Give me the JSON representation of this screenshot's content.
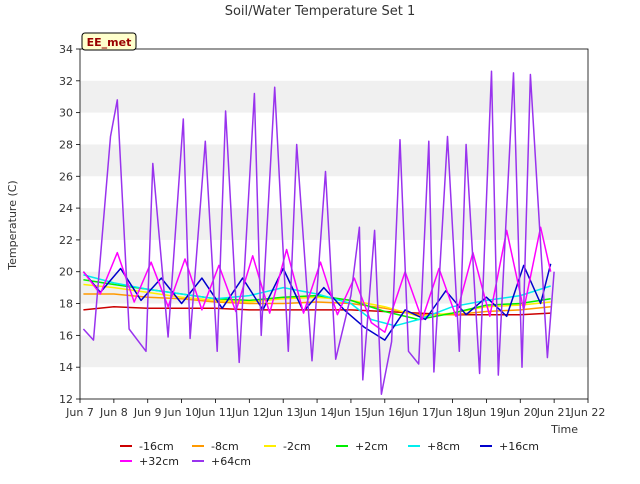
{
  "chart_data": {
    "type": "line",
    "title": "Soil/Water Temperature Set 1",
    "xlabel": "Time",
    "ylabel": "Temperature (C)",
    "annotation": "EE_met",
    "xlim": [
      7.0,
      22.0
    ],
    "ylim": [
      12,
      34
    ],
    "x_ticks": [
      {
        "v": 7,
        "label": "Jun 7"
      },
      {
        "v": 8,
        "label": "Jun 8"
      },
      {
        "v": 9,
        "label": "Jun 9"
      },
      {
        "v": 10,
        "label": "Jun 10"
      },
      {
        "v": 11,
        "label": "Jun 11"
      },
      {
        "v": 12,
        "label": "Jun 12"
      },
      {
        "v": 13,
        "label": "Jun 13"
      },
      {
        "v": 14,
        "label": "Jun 14"
      },
      {
        "v": 15,
        "label": "Jun 15"
      },
      {
        "v": 16,
        "label": "Jun 16"
      },
      {
        "v": 17,
        "label": "Jun 17"
      },
      {
        "v": 18,
        "label": "Jun 18"
      },
      {
        "v": 19,
        "label": "Jun 19"
      },
      {
        "v": 20,
        "label": "Jun 20"
      },
      {
        "v": 21,
        "label": "Jun 21"
      },
      {
        "v": 22,
        "label": "Jun 22"
      }
    ],
    "y_ticks": [
      12,
      14,
      16,
      18,
      20,
      22,
      24,
      26,
      28,
      30,
      32,
      34
    ],
    "grid": "horizontal bands",
    "legend_position": "bottom",
    "series": [
      {
        "name": "-16cm",
        "color": "#cc0000",
        "width": 1.5,
        "x": [
          7.1,
          8.0,
          9.0,
          10.0,
          11.0,
          12.0,
          13.0,
          14.0,
          15.0,
          16.0,
          17.0,
          18.0,
          19.0,
          20.0,
          20.9
        ],
        "y": [
          17.6,
          17.8,
          17.7,
          17.7,
          17.7,
          17.6,
          17.6,
          17.6,
          17.6,
          17.5,
          17.4,
          17.3,
          17.3,
          17.3,
          17.4
        ]
      },
      {
        "name": "-8cm",
        "color": "#ff9900",
        "width": 1.5,
        "x": [
          7.1,
          8.0,
          9.0,
          10.0,
          11.0,
          12.0,
          13.0,
          14.0,
          15.0,
          16.0,
          17.0,
          18.0,
          19.0,
          20.0,
          20.9
        ],
        "y": [
          18.6,
          18.6,
          18.4,
          18.3,
          18.1,
          18.0,
          18.0,
          18.1,
          18.0,
          17.7,
          17.3,
          17.3,
          17.5,
          17.6,
          17.8
        ]
      },
      {
        "name": "-2cm",
        "color": "#ffee00",
        "width": 1.5,
        "x": [
          7.1,
          8.0,
          9.0,
          10.0,
          11.0,
          12.0,
          13.0,
          14.0,
          15.0,
          16.0,
          17.0,
          18.0,
          19.0,
          20.0,
          20.9
        ],
        "y": [
          19.2,
          19.0,
          18.7,
          18.4,
          18.2,
          18.1,
          18.3,
          18.4,
          18.2,
          17.8,
          17.2,
          17.4,
          17.8,
          17.9,
          18.1
        ]
      },
      {
        "name": "+2cm",
        "color": "#00ee00",
        "width": 1.5,
        "x": [
          7.1,
          8.0,
          9.0,
          10.0,
          11.0,
          12.0,
          13.0,
          14.0,
          15.0,
          16.0,
          17.0,
          18.0,
          19.0,
          20.0,
          20.9
        ],
        "y": [
          19.5,
          19.2,
          18.9,
          18.6,
          18.3,
          18.2,
          18.4,
          18.5,
          18.2,
          17.5,
          17.0,
          17.4,
          17.9,
          18.0,
          18.3
        ]
      },
      {
        "name": "+8cm",
        "color": "#00eeee",
        "width": 1.5,
        "x": [
          7.1,
          8.0,
          9.0,
          10.0,
          11.0,
          12.0,
          13.0,
          14.0,
          15.0,
          15.6,
          16.3,
          17.0,
          18.0,
          19.0,
          20.0,
          20.9
        ],
        "y": [
          19.8,
          19.3,
          18.9,
          18.6,
          18.3,
          18.5,
          19.0,
          18.6,
          18.0,
          17.0,
          16.6,
          17.0,
          17.8,
          18.2,
          18.5,
          19.1
        ]
      },
      {
        "name": "+16cm",
        "color": "#0000cc",
        "width": 1.5,
        "x": [
          7.1,
          7.6,
          8.2,
          8.8,
          9.4,
          10.0,
          10.6,
          11.2,
          11.8,
          12.4,
          13.0,
          13.6,
          14.2,
          14.8,
          15.4,
          16.0,
          16.6,
          17.2,
          17.8,
          18.4,
          19.0,
          19.6,
          20.1,
          20.6,
          20.9
        ],
        "y": [
          20.0,
          18.7,
          20.2,
          18.2,
          19.6,
          18.0,
          19.6,
          17.7,
          19.6,
          17.6,
          20.2,
          17.5,
          19.0,
          17.6,
          16.5,
          15.7,
          17.6,
          17.0,
          18.8,
          17.3,
          18.4,
          17.2,
          20.4,
          18.0,
          20.5
        ]
      },
      {
        "name": "+32cm",
        "color": "#ff00ff",
        "width": 1.5,
        "x": [
          7.1,
          7.6,
          8.1,
          8.6,
          9.1,
          9.6,
          10.1,
          10.6,
          11.1,
          11.6,
          12.1,
          12.6,
          13.1,
          13.6,
          14.1,
          14.6,
          15.1,
          15.6,
          16.0,
          16.6,
          17.1,
          17.6,
          18.1,
          18.6,
          19.1,
          19.6,
          20.1,
          20.6,
          20.9
        ],
        "y": [
          20.0,
          18.6,
          21.2,
          18.1,
          20.6,
          17.8,
          20.8,
          17.6,
          20.4,
          17.5,
          21.0,
          17.4,
          21.4,
          17.4,
          20.6,
          17.3,
          19.6,
          16.8,
          16.2,
          20.0,
          17.0,
          20.2,
          17.2,
          21.2,
          17.2,
          22.6,
          17.6,
          22.8,
          20.0
        ]
      },
      {
        "name": "+64cm",
        "color": "#9933ee",
        "width": 1.5,
        "x": [
          7.1,
          7.4,
          7.9,
          8.1,
          8.45,
          8.95,
          9.15,
          9.6,
          10.05,
          10.25,
          10.7,
          11.05,
          11.3,
          11.7,
          12.15,
          12.35,
          12.75,
          13.15,
          13.4,
          13.85,
          14.25,
          14.55,
          15.0,
          15.25,
          15.35,
          15.7,
          15.9,
          16.2,
          16.45,
          16.7,
          17.0,
          17.3,
          17.45,
          17.85,
          18.2,
          18.4,
          18.8,
          19.15,
          19.35,
          19.8,
          20.05,
          20.3,
          20.8,
          21.0
        ],
        "y": [
          16.4,
          15.7,
          28.5,
          30.8,
          16.4,
          15.0,
          26.8,
          15.9,
          29.6,
          15.8,
          28.2,
          15.0,
          30.1,
          14.3,
          31.2,
          16.0,
          31.6,
          15.0,
          28.0,
          14.4,
          26.3,
          14.5,
          18.5,
          22.8,
          13.2,
          22.6,
          12.3,
          15.6,
          28.3,
          15.0,
          14.2,
          28.2,
          13.7,
          28.5,
          15.0,
          28.0,
          13.6,
          32.6,
          13.5,
          32.5,
          14.0,
          32.4,
          14.6,
          20.0
        ]
      }
    ]
  }
}
